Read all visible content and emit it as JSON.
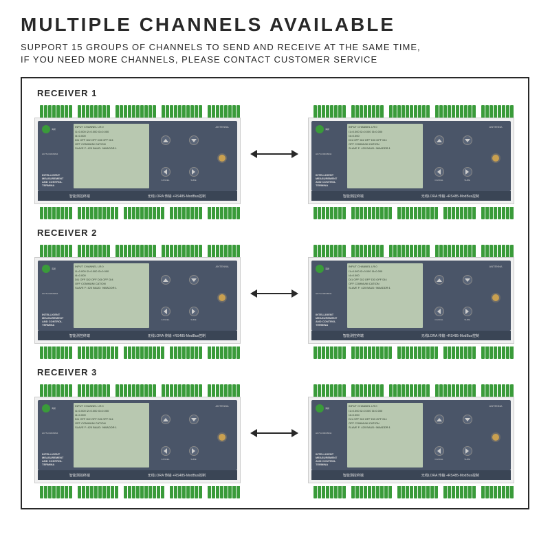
{
  "header": {
    "title": "MULTIPLE CHANNELS AVAILABLE",
    "subtitle_line1": "SUPPORT 15 GROUPS OF CHANNELS TO SEND AND RECEIVE AT THE SAME TIME,",
    "subtitle_line2": "IF YOU NEED MORE CHANNELS, PLEASE CONTACT CUSTOMER SERVICE"
  },
  "receivers": [
    {
      "label": "RECEIVER 1"
    },
    {
      "label": "RECEIVER 2"
    },
    {
      "label": "RECEIVER 3"
    }
  ],
  "device": {
    "model": "HK75-IOMCB844",
    "brand": "海鹊",
    "product_line1": "INTELLIGENT MEASUREMENT",
    "product_line2": "AND CONTROL TERMINA",
    "screen": {
      "line1": "INPUT CHANNEL        LR:0",
      "line2": "I1=0.000  I2=0.000  I3=0.000",
      "line3": "I4=0.000",
      "line4": "DI1 OFF DI2 OFF DI3 OFF DI4",
      "line5": "OFF COMMUNI CATION",
      "line6": "SLAVE F: 420 BAUD: 960ADDR:1"
    },
    "buttons": {
      "cancel": "CANCEL",
      "sure": "SURE"
    },
    "antenna_label": "ANTENNA",
    "footer": {
      "text1": "智能测控终端",
      "text2": "无线LORA 传输 +RS485-ModBus控制"
    },
    "terminal_blocks_top": [
      8,
      8,
      10,
      10,
      8
    ],
    "terminal_blocks_bottom": [
      8,
      10,
      10,
      8,
      8
    ]
  },
  "colors": {
    "text": "#282828",
    "terminal": "#3a9b3a",
    "panel": "#4a5568",
    "screen": "#b8c8b0",
    "antenna": "#c9a050",
    "strip": "#3a4555"
  }
}
